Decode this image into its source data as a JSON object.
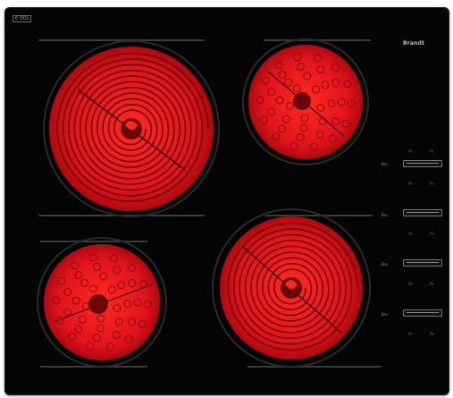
{
  "badge": "E OOL",
  "brand": "Brandt",
  "controls": [
    {
      "label": "Bru"
    },
    {
      "label": "Bru"
    },
    {
      "label": "Bru"
    },
    {
      "label": "Bru"
    }
  ],
  "colors": {
    "panel": "#050505",
    "zone_red": "#e0141c",
    "zone_dark": "#5a0608",
    "ring": "#2a2a2a"
  },
  "zones": [
    {
      "name": "zone-rear-left",
      "style": "spiral"
    },
    {
      "name": "zone-rear-right",
      "style": "radiant"
    },
    {
      "name": "zone-front-left",
      "style": "radiant"
    },
    {
      "name": "zone-front-right",
      "style": "spiral"
    }
  ]
}
